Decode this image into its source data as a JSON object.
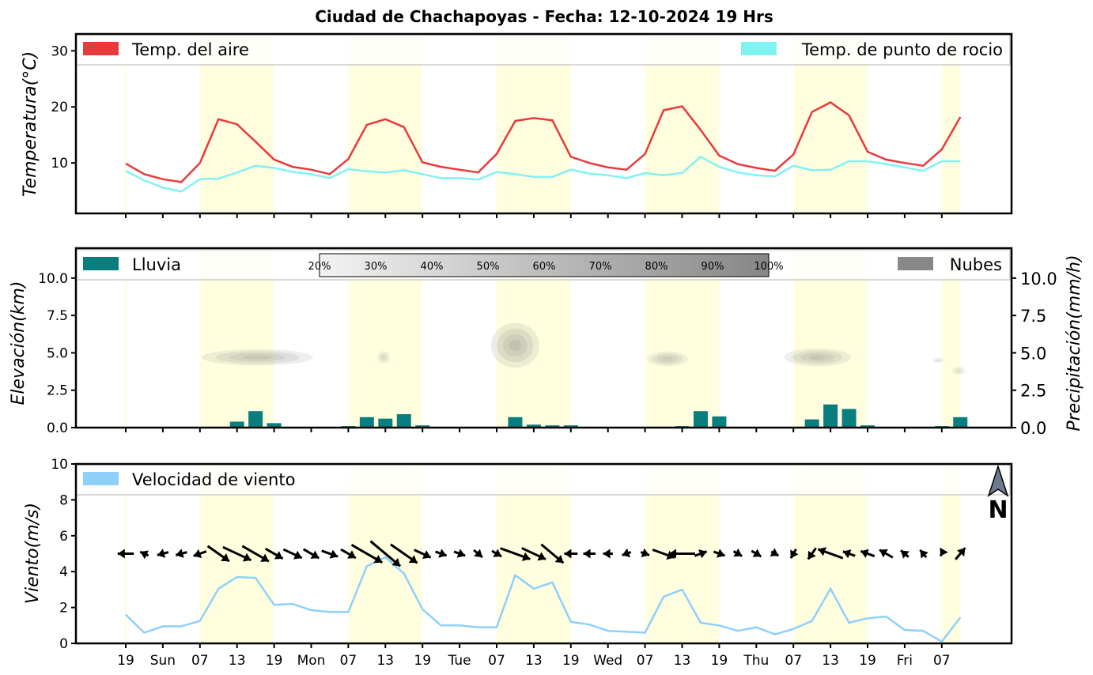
{
  "title": "Ciudad de Chachapoyas   -   Fecha: 12-10-2024 19 Hrs",
  "x_tick_labels": [
    "19",
    "Sun",
    "07",
    "13",
    "19",
    "Mon",
    "07",
    "13",
    "19",
    "Tue",
    "07",
    "13",
    "19",
    "Wed",
    "07",
    "13",
    "19",
    "Thu",
    "07",
    "13",
    "19",
    "Fri",
    "07"
  ],
  "north_label": "N",
  "colors": {
    "temp_air": "#e8393b",
    "temp_dew": "#80f2f2",
    "rain": "#0a7e7e",
    "clouds": "#888888",
    "wind": "#8fd0fb",
    "daylight": "#ffffe0",
    "arrow": "#000000",
    "north": "#6b7a8f"
  },
  "chart_data": [
    {
      "type": "line",
      "name": "temperature",
      "ylabel": "Temperatura(°C)",
      "ylim": [
        1,
        33
      ],
      "yticks": [
        10,
        20,
        30
      ],
      "grid": false,
      "legend": "top",
      "x_steps": 46,
      "series": [
        {
          "name": "Temp. del aire",
          "values": [
            9.9,
            8.0,
            7.1,
            6.6,
            10.0,
            17.8,
            16.9,
            13.8,
            10.6,
            9.3,
            8.8,
            8.0,
            10.7,
            16.8,
            17.8,
            16.4,
            10.1,
            9.3,
            8.8,
            8.3,
            11.6,
            17.5,
            18.0,
            17.6,
            11.1,
            10.0,
            9.2,
            8.8,
            11.6,
            19.4,
            20.1,
            15.9,
            11.3,
            9.8,
            9.1,
            8.6,
            11.5,
            19.1,
            20.8,
            18.5,
            12.0,
            10.6,
            10.0,
            9.5,
            12.4,
            18.2
          ]
        },
        {
          "name": "Temp. de punto de rocio",
          "values": [
            8.6,
            6.9,
            5.6,
            4.9,
            7.1,
            7.2,
            8.3,
            9.5,
            9.1,
            8.4,
            8.0,
            7.3,
            8.9,
            8.5,
            8.3,
            8.7,
            8.0,
            7.3,
            7.3,
            7.0,
            8.4,
            8.0,
            7.5,
            7.5,
            8.8,
            8.1,
            7.8,
            7.3,
            8.2,
            7.8,
            8.2,
            11.1,
            9.3,
            8.3,
            7.8,
            7.6,
            9.5,
            8.7,
            8.8,
            10.3,
            10.3,
            9.8,
            9.2,
            8.6,
            10.3,
            10.3
          ]
        }
      ]
    },
    {
      "type": "bar",
      "name": "precipitation_clouds",
      "ylabel": "Elevación(km)",
      "ylabel2": "Precipitación(mm/h)",
      "ylim": [
        0,
        12
      ],
      "yticks": [
        0.0,
        2.5,
        5.0,
        7.5,
        10.0
      ],
      "legend_left": "Lluvia",
      "legend_right": "Nubes",
      "colorbar_labels": [
        "20%",
        "30%",
        "40%",
        "50%",
        "60%",
        "70%",
        "80%",
        "90%",
        "100%"
      ],
      "series": [
        {
          "name": "Lluvia",
          "values": [
            0,
            0,
            0,
            0,
            0,
            0,
            0.4,
            1.1,
            0.3,
            0,
            0,
            0,
            0.1,
            0.7,
            0.6,
            0.9,
            0.15,
            0,
            0,
            0,
            0,
            0.7,
            0.2,
            0.15,
            0.15,
            0,
            0,
            0,
            0,
            0,
            0.1,
            1.1,
            0.75,
            0,
            0,
            0,
            0,
            0.55,
            1.55,
            1.25,
            0.15,
            0,
            0,
            0,
            0.1,
            0.7
          ]
        }
      ],
      "cloud_cells": [
        {
          "center": [
            7.1,
            4.7
          ],
          "span": [
            3.0,
            0.55
          ],
          "intensity": 0.6
        },
        {
          "center": [
            13.9,
            4.7
          ],
          "span": [
            0.35,
            0.45
          ],
          "intensity": 0.35
        },
        {
          "center": [
            21.0,
            5.5
          ],
          "span": [
            1.3,
            1.5
          ],
          "intensity": 0.7
        },
        {
          "center": [
            29.2,
            4.6
          ],
          "span": [
            1.1,
            0.5
          ],
          "intensity": 0.55
        },
        {
          "center": [
            37.3,
            4.7
          ],
          "span": [
            1.8,
            0.6
          ],
          "intensity": 0.6
        },
        {
          "center": [
            43.8,
            4.5
          ],
          "span": [
            0.35,
            0.2
          ],
          "intensity": 0.3
        },
        {
          "center": [
            44.9,
            3.8
          ],
          "span": [
            0.4,
            0.3
          ],
          "intensity": 0.3
        }
      ]
    },
    {
      "type": "line",
      "name": "wind",
      "ylabel": "Viento(m/s)",
      "ylim": [
        0,
        10
      ],
      "yticks": [
        0,
        2,
        4,
        6,
        8,
        10
      ],
      "legend": "top-left",
      "series": [
        {
          "name": "Velocidad de viento",
          "values": [
            1.6,
            0.6,
            0.95,
            0.95,
            1.25,
            3.05,
            3.7,
            3.65,
            2.15,
            2.2,
            1.85,
            1.75,
            1.75,
            4.3,
            4.8,
            3.9,
            1.9,
            1.0,
            1.0,
            0.9,
            0.9,
            3.8,
            3.05,
            3.4,
            1.2,
            1.05,
            0.7,
            0.65,
            0.6,
            2.6,
            3.0,
            1.15,
            1.0,
            0.7,
            0.9,
            0.5,
            0.8,
            1.25,
            3.05,
            1.15,
            1.4,
            1.5,
            0.75,
            0.7,
            0.1,
            1.45
          ]
        }
      ],
      "wind_arrow_angles": [
        180,
        155,
        195,
        195,
        200,
        325,
        335,
        330,
        330,
        335,
        330,
        340,
        330,
        330,
        320,
        325,
        335,
        340,
        340,
        320,
        330,
        340,
        335,
        320,
        180,
        180,
        180,
        200,
        340,
        340,
        180,
        20,
        340,
        330,
        330,
        330,
        240,
        235,
        160,
        160,
        160,
        150,
        140,
        130,
        240,
        50
      ]
    }
  ]
}
